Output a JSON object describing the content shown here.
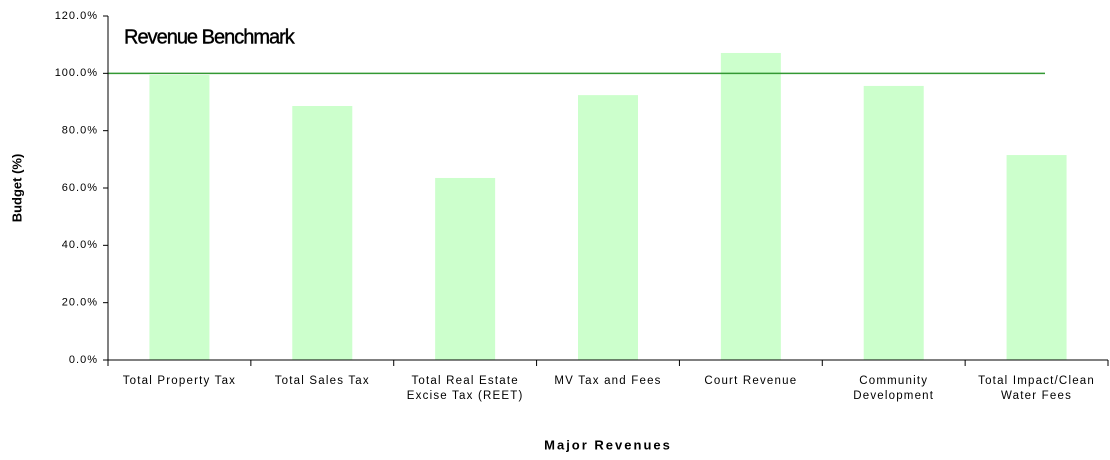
{
  "chart_data": {
    "type": "bar",
    "categories": [
      "Total Property Tax",
      "Total Sales Tax",
      "Total Real Estate Excise Tax (REET)",
      "MV Tax and Fees",
      "Court Revenue",
      "Community Development",
      "Total Impact/Clean Water Fees"
    ],
    "values": [
      99.4,
      88.6,
      63.5,
      92.4,
      107.1,
      95.6,
      71.5
    ],
    "color": "#ccffcc",
    "ylabel": "Budget (%)",
    "xlabel": "Major Revenues",
    "ylim": [
      0,
      120
    ],
    "yticks": [
      {
        "value": 0,
        "label": "0.0%"
      },
      {
        "value": 20,
        "label": "20.0%"
      },
      {
        "value": 40,
        "label": "40.0%"
      },
      {
        "value": 60,
        "label": "60.0%"
      },
      {
        "value": 80,
        "label": "80.0%"
      },
      {
        "value": 100,
        "label": "100.0%"
      },
      {
        "value": 120,
        "label": "120.0%"
      }
    ],
    "benchmark": {
      "label": "Revenue Benchmark",
      "value": 100,
      "color": "#339933"
    }
  }
}
